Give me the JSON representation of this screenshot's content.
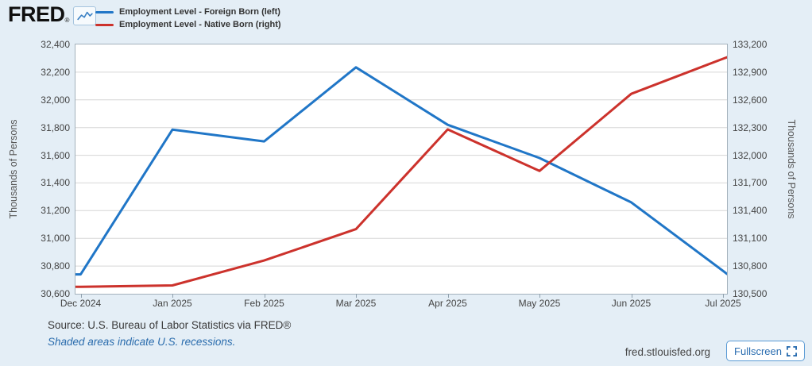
{
  "header": {
    "logo_text": "FRED",
    "logo_registered": "®"
  },
  "chart_data": {
    "type": "line",
    "categories": [
      "Dec 2024",
      "Jan 2025",
      "Feb 2025",
      "Mar 2025",
      "Apr 2025",
      "May 2025",
      "Jun 2025",
      "Jul 2025"
    ],
    "series": [
      {
        "name": "Employment Level - Foreign Born (left)",
        "axis": "left",
        "color": "#2076c7",
        "values": [
          30740,
          31785,
          31700,
          32235,
          31820,
          31580,
          31260,
          30765
        ]
      },
      {
        "name": "Employment Level - Native Born (right)",
        "axis": "right",
        "color": "#cc322c",
        "values": [
          130575,
          130590,
          130860,
          131200,
          132280,
          131830,
          132665,
          133045
        ]
      }
    ],
    "left_axis": {
      "label": "Thousands of Persons",
      "min": 30600,
      "max": 32400,
      "step": 200,
      "tick_labels": [
        "32,400",
        "32,200",
        "32,000",
        "31,800",
        "31,600",
        "31,400",
        "31,200",
        "31,000",
        "30,800",
        "30,600"
      ]
    },
    "right_axis": {
      "label": "Thousands of Persons",
      "min": 130500,
      "max": 133200,
      "step": 300,
      "tick_labels": [
        "133,200",
        "132,900",
        "132,600",
        "132,300",
        "132,000",
        "131,700",
        "131,400",
        "131,100",
        "130,800",
        "130,500"
      ]
    },
    "grid": true,
    "legend_position": "top-left",
    "line_width": 3
  },
  "footer": {
    "source": "Source: U.S. Bureau of Labor Statistics via FRED®",
    "recession_note": "Shaded areas indicate U.S. recessions.",
    "site_url": "fred.stlouisfed.org",
    "fullscreen_label": "Fullscreen"
  },
  "colors": {
    "background": "#e4eef6",
    "plot_background": "#ffffff",
    "plot_border": "#a3b1bc",
    "gridline": "#d6d6d6",
    "axis_text": "#444444",
    "link_blue": "#2a6cad",
    "button_border": "#5b9bd5",
    "button_text": "#2a6db0"
  }
}
